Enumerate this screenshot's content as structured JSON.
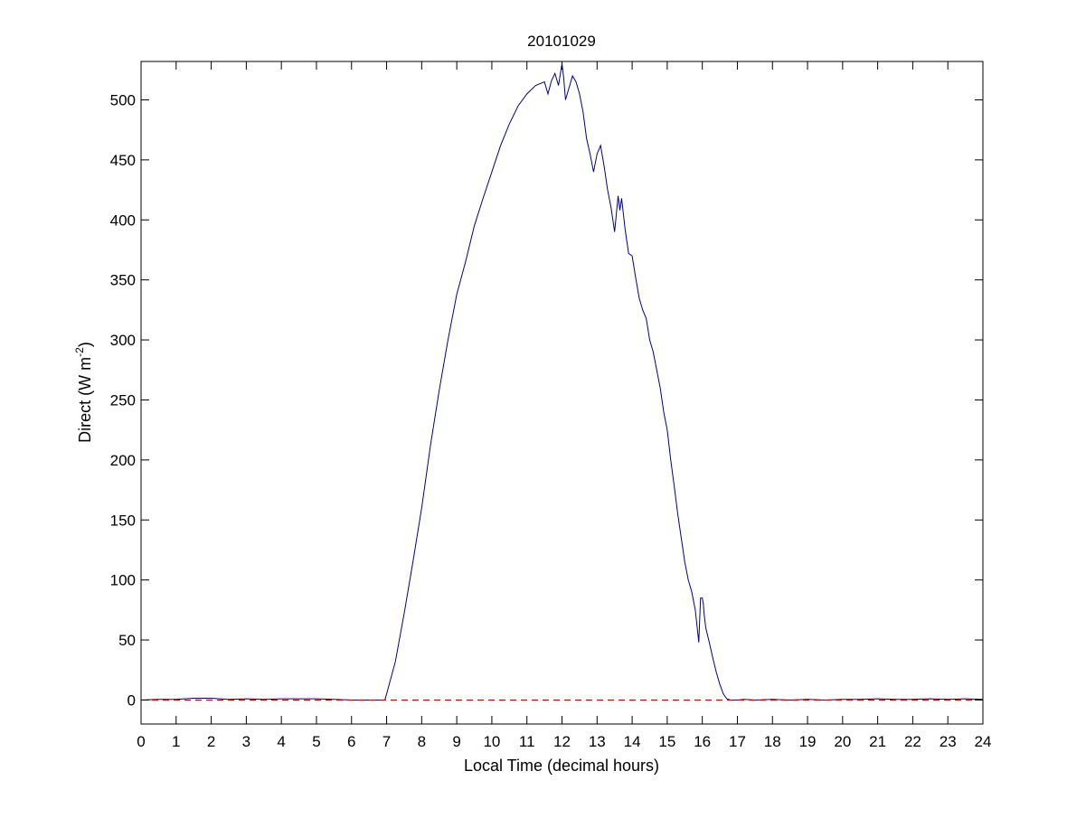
{
  "chart_data": {
    "type": "line",
    "title": "20101029",
    "xlabel": "Local Time (decimal hours)",
    "ylabel": {
      "text": "Direct (W m",
      "superscript": "-2",
      "suffix": ")"
    },
    "xlim": [
      0,
      24
    ],
    "ylim": [
      -20,
      532
    ],
    "xticks": [
      0,
      1,
      2,
      3,
      4,
      5,
      6,
      7,
      8,
      9,
      10,
      11,
      12,
      13,
      14,
      15,
      16,
      17,
      18,
      19,
      20,
      21,
      22,
      23,
      24
    ],
    "yticks": [
      0,
      50,
      100,
      150,
      200,
      250,
      300,
      350,
      400,
      450,
      500
    ],
    "grid": false,
    "series": [
      {
        "color": "#00008b",
        "style": "solid",
        "x": [
          0,
          0.5,
          1,
          1.5,
          2,
          2.5,
          3,
          3.5,
          4,
          4.5,
          5,
          5.5,
          6,
          6.5,
          6.95,
          7.0,
          7.25,
          7.5,
          7.75,
          8.0,
          8.25,
          8.5,
          8.75,
          9.0,
          9.25,
          9.5,
          9.75,
          10.0,
          10.25,
          10.5,
          10.75,
          11.0,
          11.25,
          11.5,
          11.6,
          11.7,
          11.8,
          11.9,
          12.0,
          12.05,
          12.1,
          12.2,
          12.3,
          12.4,
          12.5,
          12.6,
          12.7,
          12.8,
          12.9,
          13.0,
          13.1,
          13.2,
          13.3,
          13.4,
          13.5,
          13.6,
          13.65,
          13.7,
          13.8,
          13.9,
          14.0,
          14.1,
          14.2,
          14.3,
          14.4,
          14.5,
          14.6,
          14.7,
          14.8,
          14.9,
          15.0,
          15.1,
          15.2,
          15.3,
          15.4,
          15.5,
          15.6,
          15.7,
          15.8,
          15.9,
          15.95,
          16.0,
          16.03,
          16.05,
          16.1,
          16.2,
          16.3,
          16.4,
          16.5,
          16.6,
          16.7,
          16.8,
          16.9,
          17.0,
          17.2,
          17.5,
          18,
          18.5,
          19,
          19.5,
          20,
          20.5,
          21,
          21.5,
          22,
          22.5,
          23,
          23.5,
          24
        ],
        "values": [
          0,
          0.5,
          0.5,
          1.5,
          1.5,
          0.5,
          1,
          0.5,
          1,
          1,
          1,
          0.5,
          0,
          0,
          0,
          5,
          32,
          72,
          115,
          160,
          212,
          258,
          300,
          338,
          365,
          395,
          418,
          440,
          462,
          480,
          495,
          505,
          512,
          515,
          505,
          516,
          522,
          512,
          530,
          518,
          500,
          510,
          520,
          515,
          505,
          490,
          468,
          455,
          440,
          455,
          462,
          445,
          425,
          410,
          390,
          420,
          408,
          418,
          392,
          372,
          370,
          352,
          335,
          325,
          318,
          300,
          290,
          275,
          260,
          240,
          225,
          200,
          178,
          155,
          135,
          115,
          100,
          90,
          75,
          48,
          85,
          85,
          80,
          72,
          60,
          48,
          35,
          23,
          13,
          5,
          1,
          0,
          0,
          0,
          0.5,
          0,
          0.5,
          0,
          0.5,
          0,
          0.5,
          0.5,
          1,
          0.5,
          0.5,
          1,
          0.5,
          1,
          0.5
        ]
      },
      {
        "color": "#cc0000",
        "style": "dashed",
        "x": [
          0,
          24
        ],
        "values": [
          0,
          0
        ]
      }
    ]
  }
}
